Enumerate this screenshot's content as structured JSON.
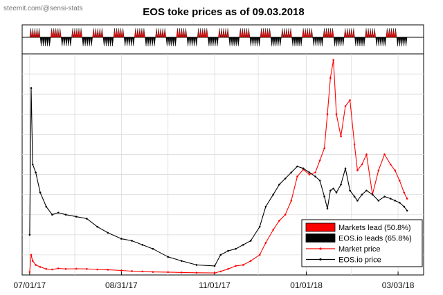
{
  "watermark": "steemit.com/@sensi-stats",
  "chart_data": {
    "type": "line",
    "title": "EOS toke prices as of 09.03.2018",
    "xlabel": "",
    "ylabel": "",
    "x_range": [
      "2017-06-26",
      "2018-03-20"
    ],
    "x_ticks": [
      "07/01/17",
      "08/31/17",
      "11/01/17",
      "01/01/18",
      "03/03/18"
    ],
    "y_ticks_shown": false,
    "grid": true,
    "legend_position": "bottom-right",
    "legend": [
      {
        "label": "Markets lead (50.8%)",
        "kind": "bar",
        "color": "#ff0000"
      },
      {
        "label": "EOS.io leads (65.8%)",
        "kind": "bar",
        "color": "#000000"
      },
      {
        "label": "Market price",
        "kind": "line",
        "color": "#ff0000"
      },
      {
        "label": "EOS.io price",
        "kind": "line",
        "color": "#000000"
      }
    ],
    "lead_strip": {
      "description": "alternating daily lead indicator",
      "markets_lead_pct": 50.8,
      "eosio_leads_pct": 65.8
    },
    "series": [
      {
        "name": "Market price",
        "color": "#ff0000",
        "x": [
          "2017-07-01",
          "2017-07-02",
          "2017-07-03",
          "2017-07-05",
          "2017-07-08",
          "2017-07-12",
          "2017-07-16",
          "2017-07-20",
          "2017-07-25",
          "2017-08-01",
          "2017-08-08",
          "2017-08-15",
          "2017-08-22",
          "2017-08-31",
          "2017-09-07",
          "2017-09-14",
          "2017-09-21",
          "2017-10-01",
          "2017-10-10",
          "2017-10-20",
          "2017-11-01",
          "2017-11-05",
          "2017-11-10",
          "2017-11-15",
          "2017-11-20",
          "2017-11-25",
          "2017-12-01",
          "2017-12-05",
          "2017-12-10",
          "2017-12-14",
          "2017-12-18",
          "2017-12-22",
          "2017-12-26",
          "2017-12-30",
          "2018-01-03",
          "2018-01-07",
          "2018-01-10",
          "2018-01-13",
          "2018-01-15",
          "2018-01-17",
          "2018-01-19",
          "2018-01-21",
          "2018-01-24",
          "2018-01-27",
          "2018-01-30",
          "2018-02-02",
          "2018-02-04",
          "2018-02-07",
          "2018-02-10",
          "2018-02-14",
          "2018-02-18",
          "2018-02-22",
          "2018-02-26",
          "2018-03-01",
          "2018-03-04",
          "2018-03-07",
          "2018-03-09"
        ],
        "y": [
          0.3,
          2.0,
          1.4,
          1.0,
          0.8,
          0.6,
          0.55,
          0.65,
          0.6,
          0.62,
          0.6,
          0.55,
          0.52,
          0.45,
          0.38,
          0.35,
          0.3,
          0.28,
          0.25,
          0.22,
          0.2,
          0.35,
          0.6,
          0.9,
          1.0,
          1.4,
          2.0,
          3.2,
          4.5,
          5.4,
          6.0,
          7.4,
          9.8,
          10.5,
          10.0,
          10.2,
          11.4,
          12.6,
          16.0,
          19.6,
          21.4,
          16.0,
          13.8,
          16.8,
          17.4,
          13.0,
          10.4,
          11.0,
          12.0,
          8.0,
          10.4,
          12.0,
          11.0,
          10.4,
          9.4,
          8.2,
          7.6
        ]
      },
      {
        "name": "EOS.io price",
        "color": "#000000",
        "x": [
          "2017-07-01",
          "2017-07-02",
          "2017-07-03",
          "2017-07-05",
          "2017-07-08",
          "2017-07-12",
          "2017-07-16",
          "2017-07-20",
          "2017-07-25",
          "2017-08-01",
          "2017-08-08",
          "2017-08-15",
          "2017-08-22",
          "2017-08-31",
          "2017-09-07",
          "2017-09-14",
          "2017-09-21",
          "2017-10-01",
          "2017-10-10",
          "2017-10-20",
          "2017-11-01",
          "2017-11-05",
          "2017-11-10",
          "2017-11-15",
          "2017-11-20",
          "2017-11-25",
          "2017-12-01",
          "2017-12-05",
          "2017-12-10",
          "2017-12-14",
          "2017-12-18",
          "2017-12-22",
          "2017-12-26",
          "2017-12-30",
          "2018-01-03",
          "2018-01-07",
          "2018-01-10",
          "2018-01-13",
          "2018-01-15",
          "2018-01-17",
          "2018-01-19",
          "2018-01-21",
          "2018-01-24",
          "2018-01-27",
          "2018-01-30",
          "2018-02-02",
          "2018-02-04",
          "2018-02-07",
          "2018-02-10",
          "2018-02-14",
          "2018-02-18",
          "2018-02-22",
          "2018-02-26",
          "2018-03-01",
          "2018-03-04",
          "2018-03-07",
          "2018-03-09"
        ],
        "y": [
          4.0,
          18.6,
          11.0,
          10.2,
          8.2,
          6.8,
          6.0,
          6.2,
          6.0,
          5.8,
          5.6,
          4.8,
          4.2,
          3.6,
          3.4,
          3.0,
          2.6,
          1.8,
          1.4,
          1.0,
          0.9,
          2.0,
          2.4,
          2.6,
          3.0,
          3.4,
          4.8,
          6.8,
          8.0,
          9.0,
          9.6,
          10.2,
          10.8,
          10.6,
          10.2,
          9.8,
          9.4,
          7.8,
          6.6,
          8.4,
          8.6,
          8.2,
          9.0,
          10.6,
          8.4,
          7.8,
          7.4,
          8.0,
          8.4,
          8.0,
          7.4,
          7.8,
          7.6,
          7.4,
          7.2,
          6.8,
          6.4
        ]
      }
    ]
  }
}
